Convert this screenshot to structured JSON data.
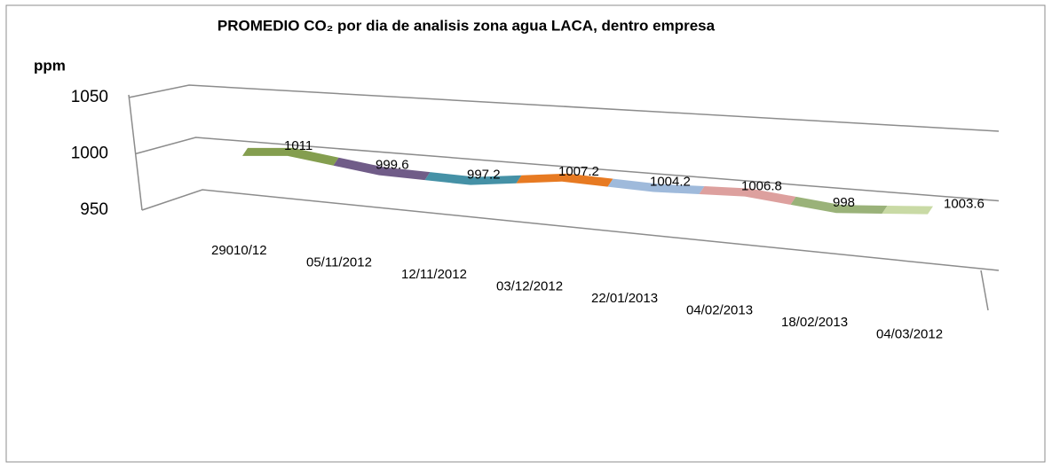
{
  "chart_data": {
    "type": "line3d",
    "title": "PROMEDIO CO₂ por dia de analisis zona agua LACA, dentro empresa",
    "y_label": "ppm",
    "categories": [
      "29010/12",
      "05/11/2012",
      "12/11/2012",
      "03/12/2012",
      "22/01/2013",
      "04/02/2013",
      "18/02/2013",
      "04/03/2012"
    ],
    "series": [
      {
        "values": [
          1011,
          999.6,
          997.2,
          1007.2,
          1004.2,
          1006.8,
          998,
          1003.6
        ],
        "colors": [
          "#77933c",
          "#604a7b",
          "#31859c",
          "#e46c0a",
          "#95b3d7",
          "#d99694",
          "#8faa6a",
          "#c3d69b"
        ]
      }
    ],
    "ylim": [
      950,
      1050
    ],
    "yticks": [
      950,
      1000,
      1050
    ],
    "grid": true
  }
}
